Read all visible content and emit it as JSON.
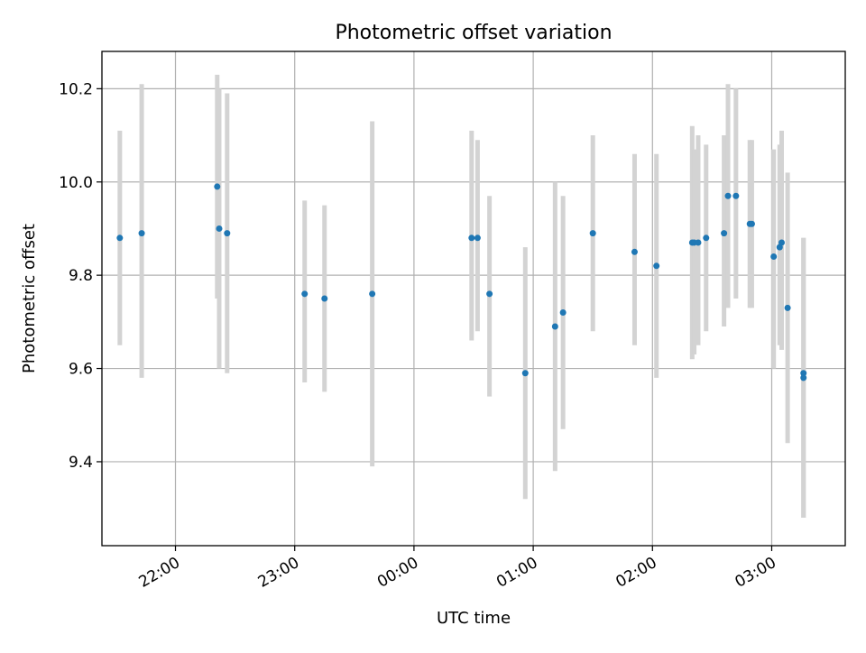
{
  "chart_data": {
    "type": "scatter",
    "title": "Photometric offset variation",
    "xlabel": "UTC time",
    "ylabel": "Photometric offset",
    "x_axis_kind": "time",
    "xlim": [
      "21:23",
      "03:37"
    ],
    "ylim": [
      9.22,
      10.28
    ],
    "x_ticks": [
      "22:00",
      "23:00",
      "00:00",
      "01:00",
      "02:00",
      "03:00"
    ],
    "y_ticks": [
      "9.4",
      "9.6",
      "9.8",
      "10.0",
      "10.2"
    ],
    "grid": true,
    "legend": "none",
    "colors": {
      "points": "#1f77b4",
      "error_bars": "#d3d3d3",
      "grid": "#b0b0b0"
    },
    "points": [
      {
        "t": "21:32",
        "y": 9.88,
        "lo": 9.65,
        "hi": 10.11
      },
      {
        "t": "21:43",
        "y": 9.89,
        "lo": 9.58,
        "hi": 10.21
      },
      {
        "t": "22:21",
        "y": 9.99,
        "lo": 9.75,
        "hi": 10.23
      },
      {
        "t": "22:22",
        "y": 9.9,
        "lo": 9.6,
        "hi": 10.2
      },
      {
        "t": "22:26",
        "y": 9.89,
        "lo": 9.59,
        "hi": 10.19
      },
      {
        "t": "23:05",
        "y": 9.76,
        "lo": 9.57,
        "hi": 9.96
      },
      {
        "t": "23:15",
        "y": 9.75,
        "lo": 9.55,
        "hi": 9.95
      },
      {
        "t": "23:39",
        "y": 9.76,
        "lo": 9.39,
        "hi": 10.13
      },
      {
        "t": "00:29",
        "y": 9.88,
        "lo": 9.66,
        "hi": 10.11
      },
      {
        "t": "00:32",
        "y": 9.88,
        "lo": 9.68,
        "hi": 10.09
      },
      {
        "t": "00:38",
        "y": 9.76,
        "lo": 9.54,
        "hi": 9.97
      },
      {
        "t": "00:56",
        "y": 9.59,
        "lo": 9.32,
        "hi": 9.86
      },
      {
        "t": "01:11",
        "y": 9.69,
        "lo": 9.38,
        "hi": 10.0
      },
      {
        "t": "01:15",
        "y": 9.72,
        "lo": 9.47,
        "hi": 9.97
      },
      {
        "t": "01:30",
        "y": 9.89,
        "lo": 9.68,
        "hi": 10.1
      },
      {
        "t": "01:51",
        "y": 9.85,
        "lo": 9.65,
        "hi": 10.06
      },
      {
        "t": "02:02",
        "y": 9.82,
        "lo": 9.58,
        "hi": 10.06
      },
      {
        "t": "02:20",
        "y": 9.87,
        "lo": 9.62,
        "hi": 10.12
      },
      {
        "t": "02:21",
        "y": 9.87,
        "lo": 9.63,
        "hi": 10.07
      },
      {
        "t": "02:23",
        "y": 9.87,
        "lo": 9.65,
        "hi": 10.1
      },
      {
        "t": "02:27",
        "y": 9.88,
        "lo": 9.68,
        "hi": 10.08
      },
      {
        "t": "02:36",
        "y": 9.89,
        "lo": 9.69,
        "hi": 10.1
      },
      {
        "t": "02:38",
        "y": 9.97,
        "lo": 9.73,
        "hi": 10.21
      },
      {
        "t": "02:42",
        "y": 9.97,
        "lo": 9.75,
        "hi": 10.2
      },
      {
        "t": "02:49",
        "y": 9.91,
        "lo": 9.73,
        "hi": 10.09
      },
      {
        "t": "02:50",
        "y": 9.91,
        "lo": 9.73,
        "hi": 10.09
      },
      {
        "t": "03:01",
        "y": 9.84,
        "lo": 9.6,
        "hi": 10.07
      },
      {
        "t": "03:04",
        "y": 9.86,
        "lo": 9.65,
        "hi": 10.08
      },
      {
        "t": "03:05",
        "y": 9.87,
        "lo": 9.64,
        "hi": 10.11
      },
      {
        "t": "03:08",
        "y": 9.73,
        "lo": 9.44,
        "hi": 10.02
      },
      {
        "t": "03:16",
        "y": 9.59,
        "lo": 9.28,
        "hi": 9.88
      },
      {
        "t": "03:16",
        "y": 9.58,
        "lo": 9.28,
        "hi": 9.88
      }
    ]
  }
}
